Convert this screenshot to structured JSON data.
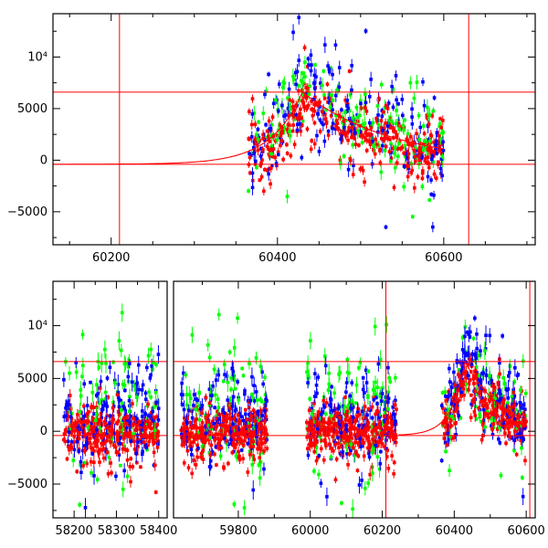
{
  "chart_data": [
    {
      "type": "scatter",
      "title": "",
      "xlabel": "",
      "ylabel": "",
      "xlim": [
        60130,
        60710
      ],
      "ylim": [
        -8200,
        14200
      ],
      "grid": false,
      "x_ticks": [
        "60200",
        "60400",
        "60600"
      ],
      "y_ticks": [
        "−5000",
        "0",
        "5000",
        "10⁴"
      ],
      "x_tick_values": [
        60200,
        60400,
        60600
      ],
      "y_tick_values": [
        -5000,
        0,
        5000,
        10000
      ],
      "reference_lines": {
        "horizontal": [
          6600,
          -400
        ],
        "vertical": [
          60210,
          60630
        ]
      },
      "model_curve": {
        "baseline": -400,
        "peak": 6600,
        "peak_x": 60430,
        "rise_start_x": 60210
      },
      "series": [
        {
          "color": "#ff0000",
          "x_range": [
            60365,
            60600
          ],
          "level_at_peak": 5600,
          "spread": 1500
        },
        {
          "color": "#00ff00",
          "x_range": [
            60365,
            60600
          ],
          "level_at_peak": 7300,
          "spread": 2200
        },
        {
          "color": "#0000ff",
          "x_range": [
            60365,
            60600
          ],
          "level_at_peak": 8200,
          "spread": 2600
        }
      ]
    },
    {
      "type": "scatter",
      "title": "",
      "xlabel": "",
      "ylabel": "",
      "ylim": [
        -8200,
        14200
      ],
      "grid": false,
      "panels": [
        {
          "xlim": [
            58150,
            58420
          ],
          "x_ticks": [
            "58200",
            "58300",
            "58400"
          ],
          "x_tick_values": [
            58200,
            58300,
            58400
          ],
          "data_range": [
            58175,
            58400
          ]
        },
        {
          "xlim": [
            59620,
            60625
          ],
          "x_ticks": [
            "59800",
            "60000",
            "60200",
            "60400",
            "60600"
          ],
          "x_tick_values": [
            59800,
            60000,
            60200,
            60400,
            60600
          ],
          "data_ranges": [
            [
              59640,
              59880
            ],
            [
              59990,
              60240
            ],
            [
              60365,
              60600
            ]
          ]
        }
      ],
      "y_ticks": [
        "−5000",
        "0",
        "5000",
        "10⁴"
      ],
      "y_tick_values": [
        -5000,
        0,
        5000,
        10000
      ],
      "reference_lines": {
        "horizontal": [
          6600,
          -400
        ],
        "vertical": [
          60210,
          60610
        ]
      },
      "series": [
        {
          "color": "#ff0000",
          "level": 0,
          "spread": 1300
        },
        {
          "color": "#00ff00",
          "level": 2500,
          "spread": 4000
        },
        {
          "color": "#0000ff",
          "level": 1200,
          "spread": 2500
        }
      ]
    }
  ]
}
